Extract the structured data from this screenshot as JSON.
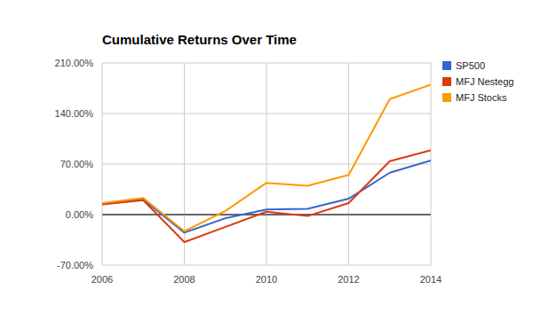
{
  "chart_data": {
    "type": "line",
    "title": "Cumulative Returns Over Time",
    "x": [
      2006,
      2007,
      2008,
      2009,
      2010,
      2011,
      2012,
      2013,
      2014
    ],
    "series": [
      {
        "name": "SP500",
        "color": "#3366cc",
        "values": [
          15,
          21,
          -25,
          -5,
          7,
          8,
          22,
          58,
          75
        ]
      },
      {
        "name": "MFJ Nestegg",
        "color": "#dc3912",
        "values": [
          14,
          20,
          -38,
          -17,
          4,
          -2,
          16,
          74,
          89
        ]
      },
      {
        "name": "MFJ Stocks",
        "color": "#ff9900",
        "values": [
          16,
          23,
          -23,
          5,
          44,
          40,
          55,
          160,
          180
        ]
      }
    ],
    "xlim": [
      2006,
      2014
    ],
    "xticks": [
      2006,
      2008,
      2010,
      2012,
      2014
    ],
    "ylim": [
      -70,
      210
    ],
    "yticks": [
      {
        "value": -70,
        "label": "-70.00%"
      },
      {
        "value": 0,
        "label": "0.00%"
      },
      {
        "value": 70,
        "label": "70.00%"
      },
      {
        "value": 140,
        "label": "140.00%"
      },
      {
        "value": 210,
        "label": "210.00%"
      }
    ],
    "grid": true,
    "legend": "right"
  }
}
